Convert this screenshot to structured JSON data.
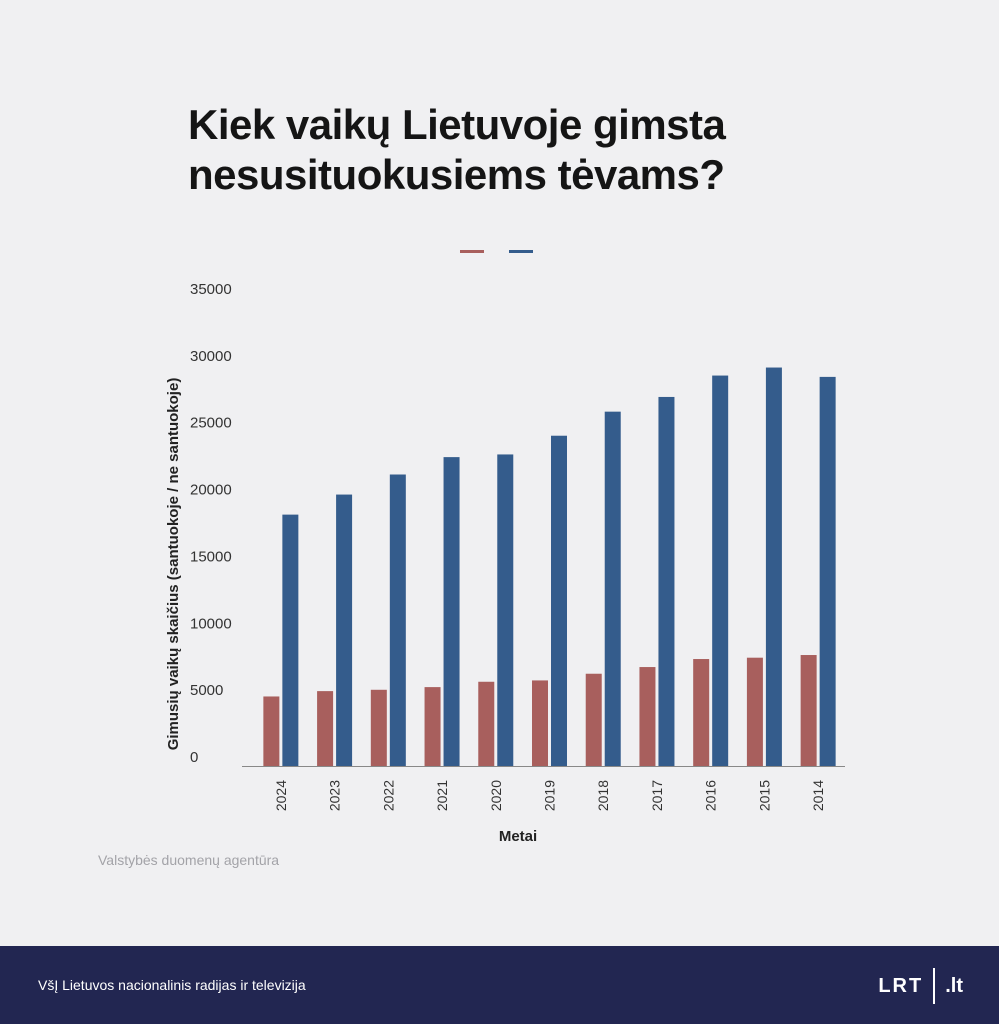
{
  "title": "Kiek vaikų Lietuvoje gimsta nesusituokusiems tėvams?",
  "source": "Valstybės duomenų agentūra",
  "footer": {
    "organization": "VšĮ Lietuvos nacionalinis radijas ir televizija",
    "logo_text": "LRT",
    "logo_tld": ".lt"
  },
  "colors": {
    "background": "#f0f0f2",
    "series_red": "#a85f5d",
    "series_blue": "#345c8c",
    "footer": "#222651"
  },
  "chart_data": {
    "type": "bar",
    "title": "Kiek vaikų Lietuvoje gimsta nesusituokusiems tėvams?",
    "xlabel": "Metai",
    "ylabel": "Gimusių vaikų skaičius (santuokoje / ne santuokoje)",
    "ylim": [
      0,
      35000
    ],
    "yticks": [
      0,
      5000,
      10000,
      15000,
      20000,
      25000,
      30000,
      35000
    ],
    "grid": false,
    "legend": "top-center",
    "categories": [
      "2024",
      "2023",
      "2022",
      "2021",
      "2020",
      "2019",
      "2018",
      "2017",
      "2016",
      "2015",
      "2014"
    ],
    "series": [
      {
        "color": "#a85f5d",
        "values": [
          5200,
          5600,
          5700,
          5900,
          6300,
          6400,
          6900,
          7400,
          8000,
          8100,
          8300
        ]
      },
      {
        "color": "#345c8c",
        "values": [
          18800,
          20300,
          21800,
          23100,
          23300,
          24700,
          26500,
          27600,
          29200,
          29800,
          29100
        ]
      }
    ]
  }
}
